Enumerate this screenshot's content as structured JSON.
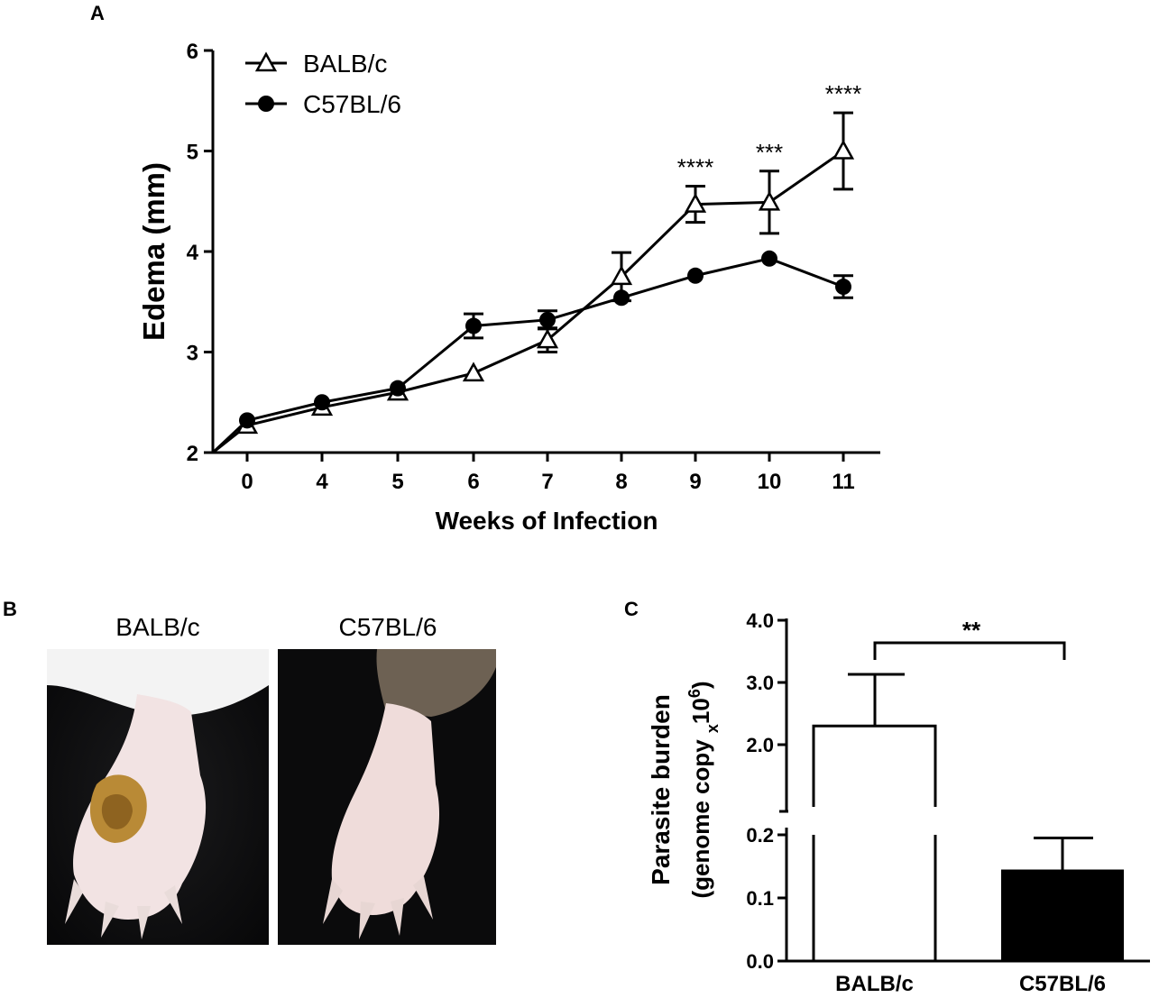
{
  "panels": {
    "a": "A",
    "b": "B",
    "c": "C"
  },
  "chart_data": [
    {
      "type": "line",
      "panel": "A",
      "xlabel": "Weeks of Infection",
      "ylabel": "Edema (mm)",
      "categories": [
        "0",
        "4",
        "5",
        "6",
        "7",
        "8",
        "9",
        "10",
        "11"
      ],
      "ylim": [
        2,
        6
      ],
      "yticks": [
        "2",
        "3",
        "4",
        "5",
        "6"
      ],
      "legend_position": "top-left",
      "series": [
        {
          "name": "BALB/c",
          "marker": "open-triangle",
          "values": [
            2.27,
            2.45,
            2.6,
            2.79,
            3.12,
            3.75,
            4.47,
            4.49,
            5.0
          ],
          "errors": [
            0.04,
            0.04,
            0.04,
            0.04,
            0.12,
            0.24,
            0.18,
            0.31,
            0.38
          ]
        },
        {
          "name": "C57BL/6",
          "marker": "filled-circle",
          "values": [
            2.32,
            2.5,
            2.64,
            3.26,
            3.32,
            3.54,
            3.76,
            3.93,
            3.65
          ],
          "errors": [
            0.03,
            0.03,
            0.03,
            0.12,
            0.09,
            0.04,
            0.03,
            0.03,
            0.11
          ]
        }
      ],
      "annotations": [
        {
          "category": "9",
          "text": "****"
        },
        {
          "category": "10",
          "text": "***"
        },
        {
          "category": "11",
          "text": "****"
        }
      ]
    },
    {
      "type": "bar",
      "panel": "C",
      "ylabel": "Parasite burden",
      "ylabel2_prefix": "(genome copy ",
      "ylabel2_sub": "x",
      "ylabel2_main": "10",
      "ylabel2_sup": "6",
      "ylabel2_suffix": ")",
      "categories": [
        "BALB/c",
        "C57BL/6"
      ],
      "values": [
        2.3,
        0.145
      ],
      "errors": [
        0.83,
        0.05
      ],
      "bar_colors": [
        "#ffffff",
        "#000000"
      ],
      "axis_break": true,
      "yticks_lower": [
        "0.0",
        "0.1",
        "0.2"
      ],
      "yticks_upper": [
        "2.0",
        "3.0",
        "4.0"
      ],
      "significance": "**"
    }
  ],
  "photos": {
    "left_title": "BALB/c",
    "right_title": "C57BL/6"
  }
}
